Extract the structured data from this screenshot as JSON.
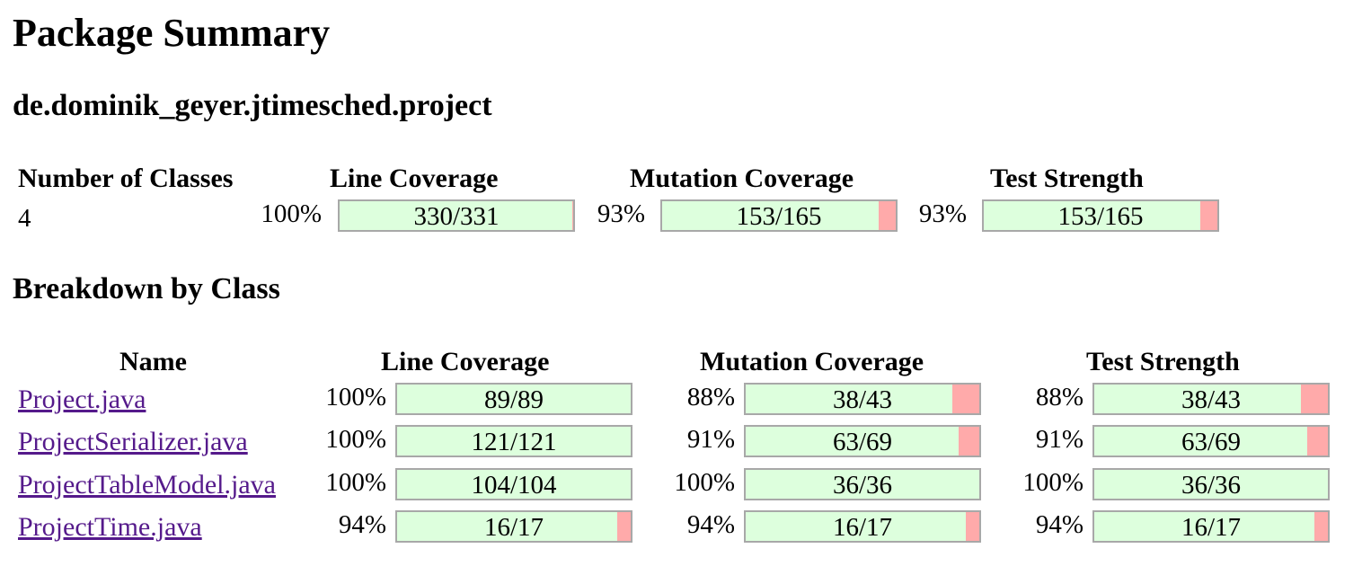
{
  "title": "Package Summary",
  "package_name": "de.dominik_geyer.jtimesched.project",
  "summary": {
    "headers": {
      "classes": "Number of Classes",
      "line": "Line Coverage",
      "mutation": "Mutation Coverage",
      "strength": "Test Strength"
    },
    "classes": "4",
    "line": {
      "pct": "100%",
      "label": "330/331",
      "fraction": 0.997
    },
    "mutation": {
      "pct": "93%",
      "label": "153/165",
      "fraction": 0.927
    },
    "strength": {
      "pct": "93%",
      "label": "153/165",
      "fraction": 0.927
    }
  },
  "breakdown_title": "Breakdown by Class",
  "breakdown": {
    "headers": {
      "name": "Name",
      "line": "Line Coverage",
      "mutation": "Mutation Coverage",
      "strength": "Test Strength"
    },
    "rows": [
      {
        "name": "Project.java",
        "line": {
          "pct": "100%",
          "label": "89/89",
          "fraction": 1.0
        },
        "mutation": {
          "pct": "88%",
          "label": "38/43",
          "fraction": 0.884
        },
        "strength": {
          "pct": "88%",
          "label": "38/43",
          "fraction": 0.884
        }
      },
      {
        "name": "ProjectSerializer.java",
        "line": {
          "pct": "100%",
          "label": "121/121",
          "fraction": 1.0
        },
        "mutation": {
          "pct": "91%",
          "label": "63/69",
          "fraction": 0.913
        },
        "strength": {
          "pct": "91%",
          "label": "63/69",
          "fraction": 0.913
        }
      },
      {
        "name": "ProjectTableModel.java",
        "line": {
          "pct": "100%",
          "label": "104/104",
          "fraction": 1.0
        },
        "mutation": {
          "pct": "100%",
          "label": "36/36",
          "fraction": 1.0
        },
        "strength": {
          "pct": "100%",
          "label": "36/36",
          "fraction": 1.0
        }
      },
      {
        "name": "ProjectTime.java",
        "line": {
          "pct": "94%",
          "label": "16/17",
          "fraction": 0.941
        },
        "mutation": {
          "pct": "94%",
          "label": "16/17",
          "fraction": 0.941
        },
        "strength": {
          "pct": "94%",
          "label": "16/17",
          "fraction": 0.941
        }
      }
    ]
  },
  "colors": {
    "covered": "#ddffdd",
    "uncovered": "#ffaaaa",
    "link": "#551a8b",
    "bar_border": "#a8a8a8"
  }
}
